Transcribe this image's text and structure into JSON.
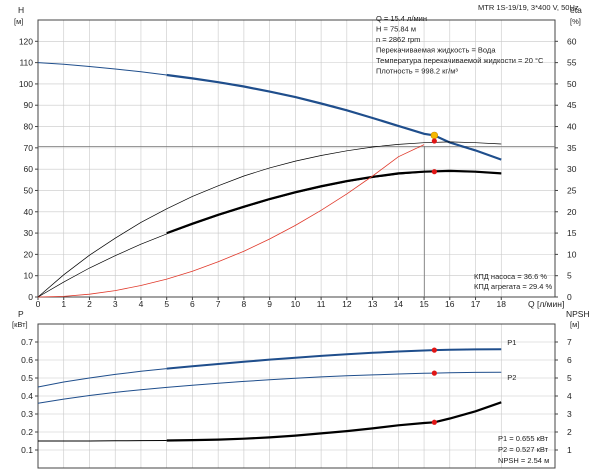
{
  "chart_data": [
    {
      "type": "line",
      "panel": "upper",
      "title": "MTR 1S-19/19, 3*400 V, 50Hz",
      "x": {
        "label": "Q [л/мин]",
        "range": [
          0,
          19
        ],
        "ticks": [
          0,
          1,
          2,
          3,
          4,
          5,
          6,
          7,
          8,
          9,
          10,
          11,
          12,
          13,
          14,
          15,
          16,
          17,
          18
        ]
      },
      "y_left": {
        "label": "H",
        "unit": "[м]",
        "range": [
          0,
          130
        ],
        "ticks": [
          0,
          10,
          20,
          30,
          40,
          50,
          60,
          70,
          80,
          90,
          100,
          110,
          120
        ]
      },
      "y_right": {
        "label": "eta",
        "unit": "[%]",
        "range": [
          0,
          65
        ],
        "ticks": [
          0,
          5,
          10,
          15,
          20,
          25,
          30,
          35,
          40,
          45,
          50,
          55,
          60
        ]
      },
      "grid": true,
      "series": [
        {
          "key": "H",
          "axis": "left",
          "color": "#1f4e8c",
          "width": 2.2,
          "points": [
            [
              0,
              110
            ],
            [
              1,
              109.2
            ],
            [
              2,
              108.2
            ],
            [
              3,
              107
            ],
            [
              4,
              105.7
            ],
            [
              5,
              104.2
            ],
            [
              6,
              102.6
            ],
            [
              7,
              100.8
            ],
            [
              8,
              98.8
            ],
            [
              9,
              96.4
            ],
            [
              10,
              93.8
            ],
            [
              11,
              90.8
            ],
            [
              12,
              87.6
            ],
            [
              13,
              84
            ],
            [
              14,
              80.3
            ],
            [
              15,
              76.6
            ],
            [
              15.4,
              75.84
            ],
            [
              16,
              72.5
            ],
            [
              17,
              68.8
            ],
            [
              18,
              64.5
            ]
          ]
        },
        {
          "key": "eta_unit",
          "axis": "right",
          "color": "#000000",
          "width": 0.7,
          "points": [
            [
              0,
              0
            ],
            [
              1,
              5.2
            ],
            [
              2,
              9.8
            ],
            [
              3,
              13.8
            ],
            [
              4,
              17.5
            ],
            [
              5,
              20.7
            ],
            [
              6,
              23.6
            ],
            [
              7,
              26.1
            ],
            [
              8,
              28.4
            ],
            [
              9,
              30.3
            ],
            [
              10,
              31.9
            ],
            [
              11,
              33.2
            ],
            [
              12,
              34.3
            ],
            [
              13,
              35.2
            ],
            [
              14,
              35.8
            ],
            [
              15,
              36.2
            ],
            [
              16,
              36.4
            ],
            [
              17,
              36.2
            ],
            [
              18,
              35.9
            ]
          ]
        },
        {
          "key": "eta_pump_thin",
          "axis": "right",
          "color": "#000000",
          "width": 0.7,
          "points": [
            [
              0,
              0
            ],
            [
              1,
              3.5
            ],
            [
              2,
              6.8
            ],
            [
              3,
              9.7
            ],
            [
              4,
              12.4
            ],
            [
              5,
              14.8
            ],
            [
              6,
              17
            ],
            [
              7,
              19.1
            ],
            [
              8,
              21
            ],
            [
              9,
              22.8
            ],
            [
              10,
              24.4
            ],
            [
              11,
              25.8
            ],
            [
              12,
              27
            ],
            [
              13,
              28
            ],
            [
              14,
              28.8
            ],
            [
              15,
              29.3
            ],
            [
              16,
              29.5
            ],
            [
              17,
              29.3
            ],
            [
              18,
              28.9
            ]
          ]
        },
        {
          "key": "eta_aggr",
          "axis": "right",
          "color": "#000000",
          "width": 2.2,
          "from": 5,
          "points": [
            [
              5,
              15
            ],
            [
              6,
              17.2
            ],
            [
              7,
              19.3
            ],
            [
              8,
              21.2
            ],
            [
              9,
              23
            ],
            [
              10,
              24.6
            ],
            [
              11,
              26
            ],
            [
              12,
              27.2
            ],
            [
              13,
              28.2
            ],
            [
              14,
              29
            ],
            [
              15,
              29.4
            ],
            [
              16,
              29.6
            ],
            [
              17,
              29.4
            ],
            [
              18,
              29
            ]
          ]
        },
        {
          "key": "system",
          "axis": "left",
          "color": "#e0392b",
          "width": 0.8,
          "points": [
            [
              0,
              0
            ],
            [
              1,
              0.3
            ],
            [
              2,
              1.3
            ],
            [
              3,
              3
            ],
            [
              4,
              5.4
            ],
            [
              5,
              8.4
            ],
            [
              6,
              12.1
            ],
            [
              7,
              16.5
            ],
            [
              8,
              21.5
            ],
            [
              9,
              27.2
            ],
            [
              10,
              33.6
            ],
            [
              11,
              40.7
            ],
            [
              12,
              48.4
            ],
            [
              13,
              56.8
            ],
            [
              14,
              65.8
            ],
            [
              15,
              71.5
            ]
          ]
        }
      ],
      "duty_point": {
        "q": 15.4,
        "h": 75.84,
        "eta_pump": 36.6,
        "eta_aggr": 29.4
      },
      "info_lines": [
        "Q = 15.4 л/мин",
        "H = 75.84 м",
        "n = 2862 rpm",
        "Перекачиваемая жидкость = Вода",
        "Температура перекачиваемой жидкости = 20 °C",
        "Плотность = 998.2 кг/м³"
      ],
      "efficiency_labels": [
        "КПД насоса = 36.6 %",
        "КПД агрегата = 29.4 %"
      ]
    },
    {
      "type": "line",
      "panel": "lower",
      "x": {
        "range": [
          0,
          19
        ]
      },
      "y_left": {
        "label": "P",
        "unit": "[кВт]",
        "range": [
          0,
          0.8
        ],
        "ticks": [
          0.1,
          0.2,
          0.3,
          0.4,
          0.5,
          0.6,
          0.7
        ]
      },
      "y_right": {
        "label": "NPSH",
        "unit": "[м]",
        "range": [
          0,
          8
        ],
        "ticks": [
          1,
          2,
          3,
          4,
          5,
          6,
          7
        ]
      },
      "grid": true,
      "series": [
        {
          "key": "P1",
          "name": "P1",
          "axis": "left",
          "color": "#1f4e8c",
          "width": 2.0,
          "from": 5,
          "points": [
            [
              0,
              0.45
            ],
            [
              1,
              0.478
            ],
            [
              2,
              0.5
            ],
            [
              3,
              0.52
            ],
            [
              4,
              0.537
            ],
            [
              5,
              0.552
            ],
            [
              6,
              0.565
            ],
            [
              7,
              0.578
            ],
            [
              8,
              0.59
            ],
            [
              9,
              0.602
            ],
            [
              10,
              0.613
            ],
            [
              11,
              0.623
            ],
            [
              12,
              0.632
            ],
            [
              13,
              0.64
            ],
            [
              14,
              0.647
            ],
            [
              15,
              0.653
            ],
            [
              15.4,
              0.655
            ],
            [
              16,
              0.657
            ],
            [
              17,
              0.659
            ],
            [
              18,
              0.66
            ]
          ]
        },
        {
          "key": "P2",
          "name": "P2",
          "axis": "left",
          "color": "#1f4e8c",
          "width": 1.0,
          "points": [
            [
              0,
              0.36
            ],
            [
              1,
              0.383
            ],
            [
              2,
              0.403
            ],
            [
              3,
              0.42
            ],
            [
              4,
              0.435
            ],
            [
              5,
              0.448
            ],
            [
              6,
              0.46
            ],
            [
              7,
              0.471
            ],
            [
              8,
              0.481
            ],
            [
              9,
              0.49
            ],
            [
              10,
              0.499
            ],
            [
              11,
              0.506
            ],
            [
              12,
              0.512
            ],
            [
              13,
              0.517
            ],
            [
              14,
              0.522
            ],
            [
              15,
              0.526
            ],
            [
              15.4,
              0.527
            ],
            [
              16,
              0.529
            ],
            [
              17,
              0.531
            ],
            [
              18,
              0.532
            ]
          ]
        },
        {
          "key": "NPSH",
          "axis": "right",
          "color": "#000000",
          "width": 2.2,
          "from": 5,
          "points": [
            [
              0,
              1.5
            ],
            [
              1,
              1.5
            ],
            [
              2,
              1.5
            ],
            [
              3,
              1.51
            ],
            [
              4,
              1.52
            ],
            [
              5,
              1.53
            ],
            [
              6,
              1.55
            ],
            [
              7,
              1.58
            ],
            [
              8,
              1.63
            ],
            [
              9,
              1.7
            ],
            [
              10,
              1.8
            ],
            [
              11,
              1.92
            ],
            [
              12,
              2.05
            ],
            [
              13,
              2.2
            ],
            [
              14,
              2.37
            ],
            [
              15,
              2.5
            ],
            [
              15.4,
              2.54
            ],
            [
              16,
              2.75
            ],
            [
              17,
              3.15
            ],
            [
              18,
              3.65
            ]
          ]
        }
      ],
      "duty_values": [
        "P1 = 0.655 кВт",
        "P2 = 0.527 кВт",
        "NPSH = 2.54 м"
      ],
      "duty_markers": [
        [
          "P1",
          0.655
        ],
        [
          "P2",
          0.527
        ],
        [
          "NPSH",
          2.54
        ]
      ]
    }
  ]
}
